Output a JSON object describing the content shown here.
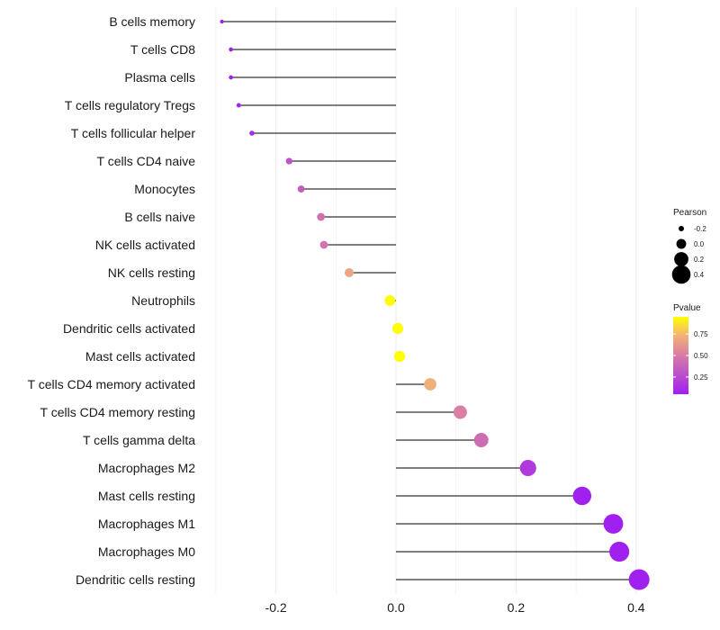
{
  "chart_data": {
    "type": "lollipop",
    "title": "",
    "xlabel": "",
    "ylabel": "",
    "xlim": [
      -0.3,
      0.42
    ],
    "x_ticks": [
      {
        "value": -0.2,
        "label": "-0.2"
      },
      {
        "value": 0.0,
        "label": "0.0"
      },
      {
        "value": 0.2,
        "label": "0.2"
      },
      {
        "value": 0.4,
        "label": "0.4"
      }
    ],
    "grid": true,
    "legend_position": "right",
    "colors": {
      "low": "#a020f0",
      "high": "#ffff00",
      "stem": "#333333",
      "grid": "#ebebeb"
    },
    "points": [
      {
        "name": "B cells memory",
        "pearson": -0.29,
        "pvalue": 0.01
      },
      {
        "name": "T cells CD8",
        "pearson": -0.275,
        "pvalue": 0.03
      },
      {
        "name": "Plasma cells",
        "pearson": -0.275,
        "pvalue": 0.03
      },
      {
        "name": "T cells regulatory  Tregs",
        "pearson": -0.262,
        "pvalue": 0.08
      },
      {
        "name": "T cells follicular helper",
        "pearson": -0.24,
        "pvalue": 0.1
      },
      {
        "name": "T cells CD4 naive",
        "pearson": -0.178,
        "pvalue": 0.3
      },
      {
        "name": "Monocytes",
        "pearson": -0.158,
        "pvalue": 0.35
      },
      {
        "name": "B cells naive",
        "pearson": -0.125,
        "pvalue": 0.45
      },
      {
        "name": "NK cells activated",
        "pearson": -0.12,
        "pvalue": 0.47
      },
      {
        "name": "NK cells resting",
        "pearson": -0.078,
        "pvalue": 0.68
      },
      {
        "name": "Neutrophils",
        "pearson": -0.01,
        "pvalue": 0.95
      },
      {
        "name": "Dendritic cells activated",
        "pearson": 0.003,
        "pvalue": 0.99
      },
      {
        "name": "Mast cells activated",
        "pearson": 0.006,
        "pvalue": 0.97
      },
      {
        "name": "T cells CD4 memory activated",
        "pearson": 0.057,
        "pvalue": 0.72
      },
      {
        "name": "T cells CD4 memory resting",
        "pearson": 0.107,
        "pvalue": 0.52
      },
      {
        "name": "T cells gamma delta",
        "pearson": 0.142,
        "pvalue": 0.42
      },
      {
        "name": "Macrophages M2",
        "pearson": 0.22,
        "pvalue": 0.18
      },
      {
        "name": "Mast cells resting",
        "pearson": 0.31,
        "pvalue": 0.05
      },
      {
        "name": "Macrophages M1",
        "pearson": 0.362,
        "pvalue": 0.03
      },
      {
        "name": "Macrophages M0",
        "pearson": 0.372,
        "pvalue": 0.02
      },
      {
        "name": "Dendritic cells resting",
        "pearson": 0.405,
        "pvalue": 0.01
      }
    ],
    "legend_size": {
      "title": "Pearson",
      "entries": [
        {
          "value": -0.2,
          "label": "-0.2"
        },
        {
          "value": 0.0,
          "label": "0.0"
        },
        {
          "value": 0.2,
          "label": "0.2"
        },
        {
          "value": 0.4,
          "label": "0.4"
        }
      ]
    },
    "legend_color": {
      "title": "Pvalue",
      "range": [
        0.05,
        0.95
      ],
      "ticks": [
        {
          "value": 0.75,
          "label": "0.75"
        },
        {
          "value": 0.5,
          "label": "0.50"
        },
        {
          "value": 0.25,
          "label": "0.25"
        }
      ]
    }
  }
}
